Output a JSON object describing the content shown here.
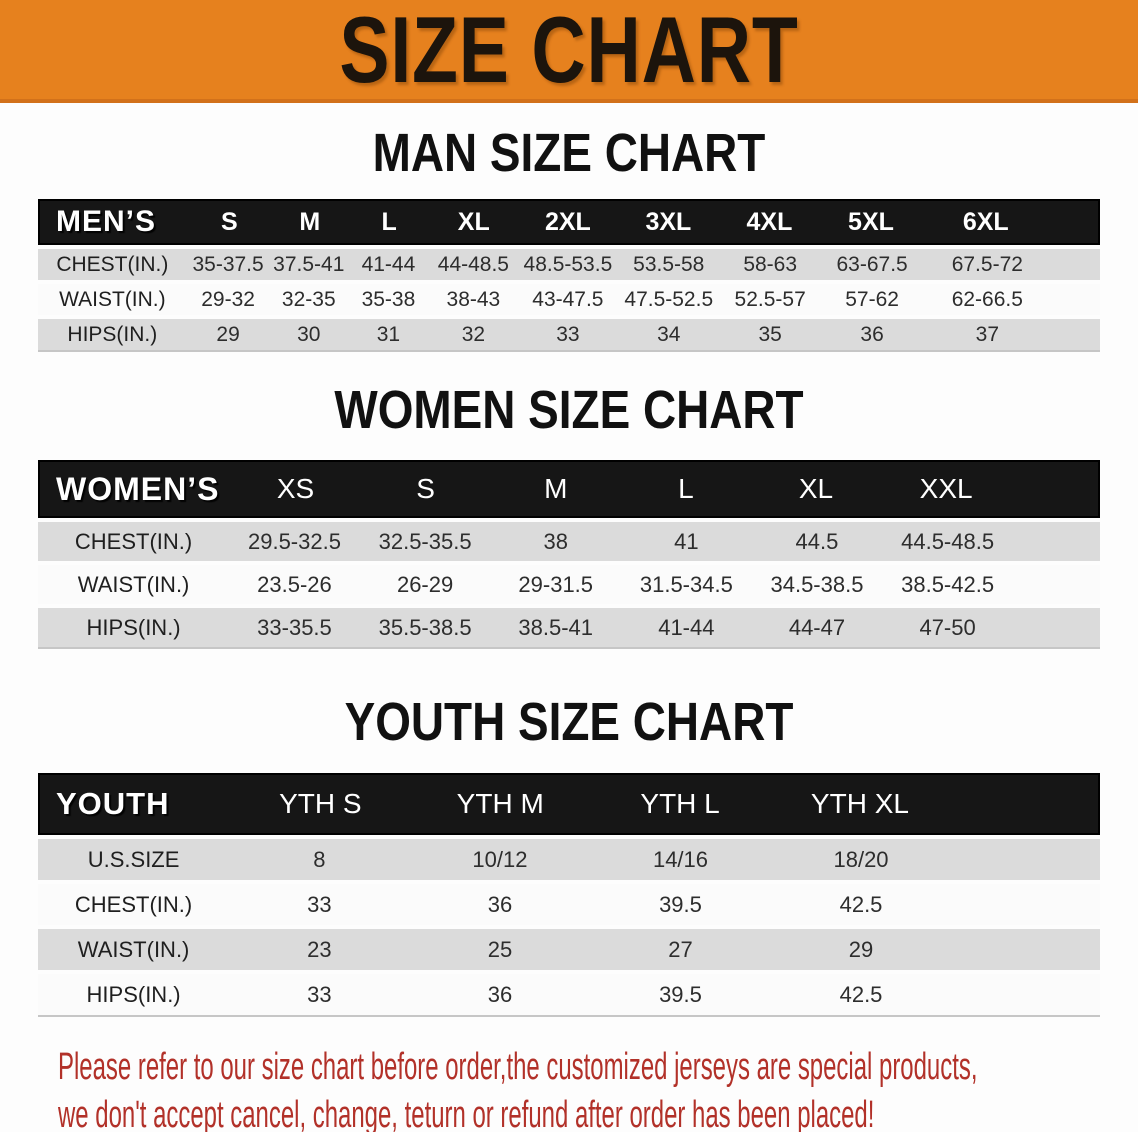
{
  "banner": {
    "title": "SIZE CHART",
    "bg_color": "#E6811E"
  },
  "sections": [
    {
      "heading": "MAN SIZE CHART",
      "table": {
        "header_label": "MEN’S",
        "columns": [
          "S",
          "M",
          "L",
          "XL",
          "2XL",
          "3XL",
          "4XL",
          "5XL",
          "6XL"
        ],
        "rows": [
          {
            "label": "CHEST(IN.)",
            "values": [
              "35-37.5",
              "37.5-41",
              "41-44",
              "44-48.5",
              "48.5-53.5",
              "53.5-58",
              "58-63",
              "63-67.5",
              "67.5-72"
            ]
          },
          {
            "label": "WAIST(IN.)",
            "values": [
              "29-32",
              "32-35",
              "35-38",
              "38-43",
              "43-47.5",
              "47.5-52.5",
              "52.5-57",
              "57-62",
              "62-66.5"
            ]
          },
          {
            "label": "HIPS(IN.)",
            "values": [
              "29",
              "30",
              "31",
              "32",
              "33",
              "34",
              "35",
              "36",
              "37"
            ]
          }
        ]
      }
    },
    {
      "heading": "WOMEN SIZE CHART",
      "table": {
        "header_label": "WOMEN’S",
        "columns": [
          "XS",
          "S",
          "M",
          "L",
          "XL",
          "XXL"
        ],
        "rows": [
          {
            "label": "CHEST(IN.)",
            "values": [
              "29.5-32.5",
              "32.5-35.5",
              "38",
              "41",
              "44.5",
              "44.5-48.5"
            ]
          },
          {
            "label": "WAIST(IN.)",
            "values": [
              "23.5-26",
              "26-29",
              "29-31.5",
              "31.5-34.5",
              "34.5-38.5",
              "38.5-42.5"
            ]
          },
          {
            "label": "HIPS(IN.)",
            "values": [
              "33-35.5",
              "35.5-38.5",
              "38.5-41",
              "41-44",
              "44-47",
              "47-50"
            ]
          }
        ]
      }
    },
    {
      "heading": "YOUTH SIZE CHART",
      "table": {
        "header_label": "YOUTH",
        "columns": [
          "YTH S",
          "YTH M",
          "YTH L",
          "YTH XL"
        ],
        "rows": [
          {
            "label": "U.S.SIZE",
            "values": [
              "8",
              "10/12",
              "14/16",
              "18/20"
            ]
          },
          {
            "label": "CHEST(IN.)",
            "values": [
              "33",
              "36",
              "39.5",
              "42.5"
            ]
          },
          {
            "label": "WAIST(IN.)",
            "values": [
              "23",
              "25",
              "27",
              "29"
            ]
          },
          {
            "label": "HIPS(IN.)",
            "values": [
              "33",
              "36",
              "39.5",
              "42.5"
            ]
          }
        ]
      }
    }
  ],
  "footer": {
    "line1": "Please refer to our size chart before order,the customized jerseys are special products,",
    "line2": "we don't accept cancel, change, teturn or refund after order has been placed!",
    "text_color": "#B23129"
  }
}
